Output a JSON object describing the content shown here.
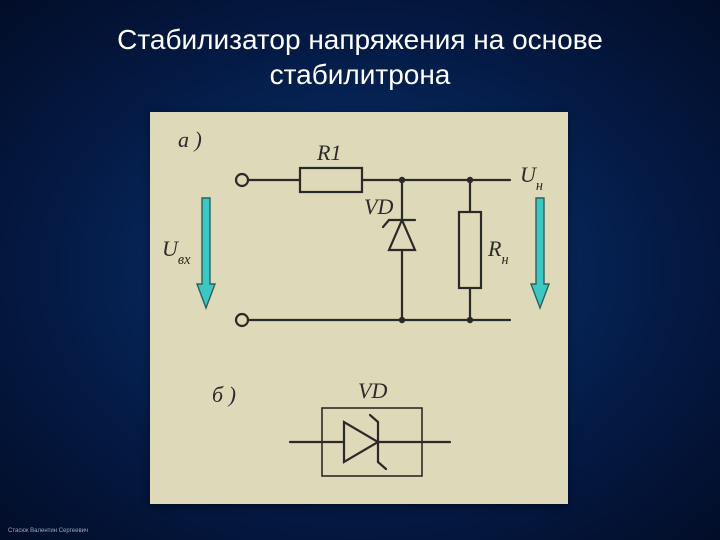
{
  "title_line1": "Стабилизатор напряжения на основе",
  "title_line2": "стабилитрона",
  "footer": "Стасюк Валентин Сергеевич",
  "figure": {
    "bg": "#ded9b8",
    "stroke": "#2a2a28",
    "stroke_w": 2.2,
    "arrow_fill": "#3cc6c4",
    "arrow_stroke": "#2a625f",
    "labels": {
      "a": "а )",
      "b": "б )",
      "R1": "R1",
      "VD": "VD",
      "VD2": "VD",
      "Rn": "Rн",
      "Uvx": "Uвх",
      "Un": "Uн"
    },
    "fontsize_label": 22,
    "fontsize_small": 14
  }
}
